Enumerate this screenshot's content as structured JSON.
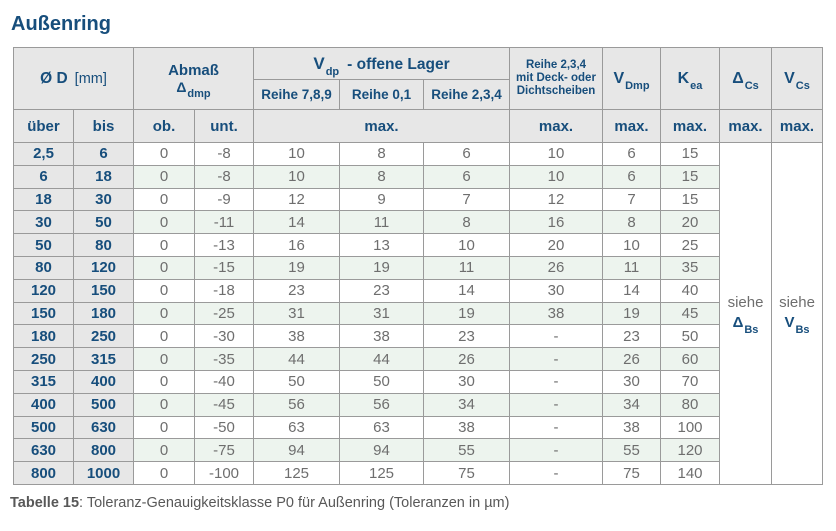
{
  "title": "Außenring",
  "caption": {
    "label": "Tabelle 15",
    "text": ": Toleranz-Genauigkeitsklasse P0 für Außenring (Toleranzen in µm)"
  },
  "colors": {
    "navy": "#174e7c",
    "header_bg": "#e7e7e7",
    "stripe_green": "#edf4ee",
    "data_text": "#6e6e6e",
    "border": "#9a9a9a"
  },
  "table": {
    "headers": {
      "diameter_bold": "Ø D",
      "diameter_unit": "[mm]",
      "abmass_line1": "Abmaß",
      "abmass_sym": "Δ",
      "abmass_sub": "dmp",
      "vdp_base": "V",
      "vdp_sub": "dp",
      "vdp_rest": "-  offene Lager",
      "reihe_789": "Reihe 7,8,9",
      "reihe_01": "Reihe 0,1",
      "reihe_234": "Reihe 2,3,4",
      "deck_line1": "Reihe 2,3,4",
      "deck_line2": "mit Deck- oder",
      "deck_line3": "Dichtscheiben",
      "vdmp_base": "V",
      "vdmp_sub": "Dmp",
      "kea_base": "K",
      "kea_sub": "ea",
      "dcs_base": "Δ",
      "dcs_sub": "Cs",
      "vcs_base": "V",
      "vcs_sub": "Cs",
      "ueber": "über",
      "bis": "bis",
      "ob": "ob.",
      "unt": "unt.",
      "max": "max."
    },
    "see_refs": {
      "dbs": {
        "word": "siehe",
        "base": "Δ",
        "sub": "Bs"
      },
      "vbs": {
        "word": "siehe",
        "base": "V",
        "sub": "Bs"
      }
    },
    "rows": [
      [
        "2,5",
        "6",
        "0",
        "-8",
        "10",
        "8",
        "6",
        "10",
        "6",
        "15"
      ],
      [
        "6",
        "18",
        "0",
        "-8",
        "10",
        "8",
        "6",
        "10",
        "6",
        "15"
      ],
      [
        "18",
        "30",
        "0",
        "-9",
        "12",
        "9",
        "7",
        "12",
        "7",
        "15"
      ],
      [
        "30",
        "50",
        "0",
        "-11",
        "14",
        "11",
        "8",
        "16",
        "8",
        "20"
      ],
      [
        "50",
        "80",
        "0",
        "-13",
        "16",
        "13",
        "10",
        "20",
        "10",
        "25"
      ],
      [
        "80",
        "120",
        "0",
        "-15",
        "19",
        "19",
        "11",
        "26",
        "11",
        "35"
      ],
      [
        "120",
        "150",
        "0",
        "-18",
        "23",
        "23",
        "14",
        "30",
        "14",
        "40"
      ],
      [
        "150",
        "180",
        "0",
        "-25",
        "31",
        "31",
        "19",
        "38",
        "19",
        "45"
      ],
      [
        "180",
        "250",
        "0",
        "-30",
        "38",
        "38",
        "23",
        "-",
        "23",
        "50"
      ],
      [
        "250",
        "315",
        "0",
        "-35",
        "44",
        "44",
        "26",
        "-",
        "26",
        "60"
      ],
      [
        "315",
        "400",
        "0",
        "-40",
        "50",
        "50",
        "30",
        "-",
        "30",
        "70"
      ],
      [
        "400",
        "500",
        "0",
        "-45",
        "56",
        "56",
        "34",
        "-",
        "34",
        "80"
      ],
      [
        "500",
        "630",
        "0",
        "-50",
        "63",
        "63",
        "38",
        "-",
        "38",
        "100"
      ],
      [
        "630",
        "800",
        "0",
        "-75",
        "94",
        "94",
        "55",
        "-",
        "55",
        "120"
      ],
      [
        "800",
        "1000",
        "0",
        "-100",
        "125",
        "125",
        "75",
        "-",
        "75",
        "140"
      ]
    ]
  }
}
